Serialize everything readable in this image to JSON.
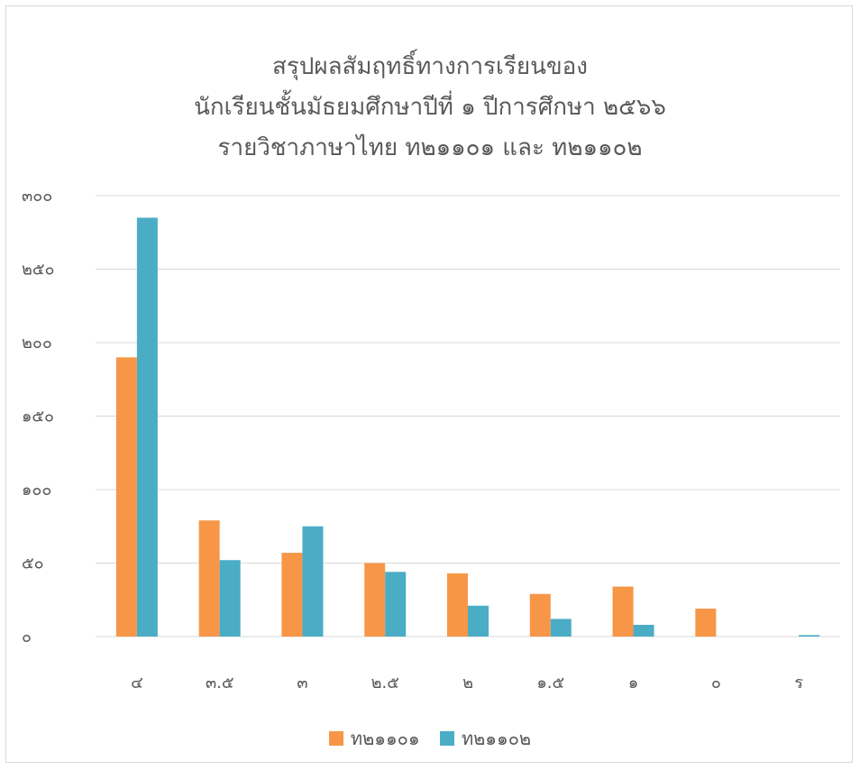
{
  "chart_data": {
    "type": "bar",
    "title_lines": [
      "สรุปผลสัมฤทธิ์ทางการเรียนของ",
      "นักเรียนชั้นมัธยมศึกษาปีที่ ๑ ปีการศึกษา ๒๕๖๖",
      "รายวิชาภาษาไทย ท๒๑๑๐๑ และ ท๒๑๑๐๒"
    ],
    "categories": [
      "๔",
      "๓.๕",
      "๓",
      "๒.๕",
      "๒",
      "๑.๕",
      "๑",
      "๐",
      "ร"
    ],
    "series": [
      {
        "name": "ท๒๑๑๐๑",
        "color": "#F79646",
        "values": [
          190,
          79,
          57,
          50,
          43,
          29,
          34,
          19,
          0
        ]
      },
      {
        "name": "ท๒๑๑๐๒",
        "color": "#4BACC6",
        "values": [
          285,
          52,
          75,
          44,
          21,
          12,
          8,
          0,
          1
        ]
      }
    ],
    "ylim": [
      0,
      300
    ],
    "yticks": [
      {
        "value": 0,
        "label": "๐"
      },
      {
        "value": 50,
        "label": "๕๐"
      },
      {
        "value": 100,
        "label": "๑๐๐"
      },
      {
        "value": 150,
        "label": "๑๕๐"
      },
      {
        "value": 200,
        "label": "๒๐๐"
      },
      {
        "value": 250,
        "label": "๒๕๐"
      },
      {
        "value": 300,
        "label": "๓๐๐"
      }
    ],
    "grid": true,
    "legend_position": "bottom"
  }
}
